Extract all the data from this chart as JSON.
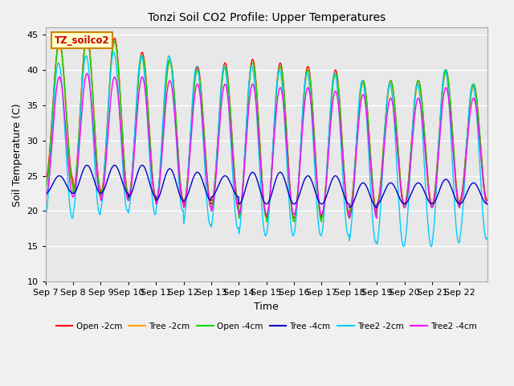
{
  "title": "Tonzi Soil CO2 Profile: Upper Temperatures",
  "xlabel": "Time",
  "ylabel": "Soil Temperature (C)",
  "ylim": [
    10,
    46
  ],
  "yticks": [
    10,
    15,
    20,
    25,
    30,
    35,
    40,
    45
  ],
  "xtick_labels": [
    "Sep 7",
    "Sep 8",
    "Sep 9",
    "Sep 10",
    "Sep 11",
    "Sep 12",
    "Sep 13",
    "Sep 14",
    "Sep 15",
    "Sep 16",
    "Sep 17",
    "Sep 18",
    "Sep 19",
    "Sep 20",
    "Sep 21",
    "Sep 22"
  ],
  "series": [
    {
      "label": "Open -2cm",
      "color": "#ff0000"
    },
    {
      "label": "Tree -2cm",
      "color": "#ffa500"
    },
    {
      "label": "Open -4cm",
      "color": "#00dd00"
    },
    {
      "label": "Tree -4cm",
      "color": "#0000cc"
    },
    {
      "label": "Tree2 -2cm",
      "color": "#00ccff"
    },
    {
      "label": "Tree2 -4cm",
      "color": "#ff00ff"
    }
  ],
  "annotation_text": "TZ_soilco2",
  "annotation_color": "#cc0000",
  "annotation_bg": "#ffffcc",
  "annotation_border": "#cc8800",
  "fig_bg": "#f0f0f0",
  "plot_bg": "#e8e8e8",
  "grid_color": "#ffffff",
  "n_days": 16,
  "points_per_day": 96,
  "pk_open2": [
    44.0,
    45.0,
    44.5,
    42.5,
    41.5,
    40.5,
    41.0,
    41.5,
    41.0,
    40.5,
    40.0,
    38.5,
    38.5,
    38.5,
    40.0,
    38.0
  ],
  "mn_open2": [
    24.5,
    23.0,
    22.5,
    22.0,
    21.5,
    21.0,
    21.0,
    19.5,
    19.0,
    19.0,
    19.5,
    20.0,
    21.0,
    21.0,
    21.0,
    21.5
  ],
  "pk_tree2": [
    43.5,
    44.5,
    44.0,
    42.0,
    41.0,
    40.0,
    40.5,
    41.0,
    40.5,
    40.0,
    39.5,
    38.0,
    38.0,
    38.0,
    39.5,
    37.5
  ],
  "mn_tree2": [
    23.5,
    22.5,
    22.0,
    21.5,
    21.0,
    20.5,
    20.5,
    19.0,
    18.5,
    18.5,
    19.0,
    19.5,
    20.5,
    20.5,
    20.5,
    21.0
  ],
  "pk_open4": [
    44.0,
    44.5,
    44.0,
    42.0,
    41.5,
    40.0,
    40.5,
    41.0,
    40.5,
    40.0,
    39.5,
    38.5,
    38.5,
    38.5,
    40.0,
    38.0
  ],
  "mn_open4": [
    23.5,
    22.5,
    22.0,
    21.5,
    21.0,
    20.5,
    20.5,
    19.0,
    18.5,
    18.5,
    19.0,
    19.5,
    20.5,
    20.5,
    20.5,
    21.0
  ],
  "pk_tree4": [
    25.0,
    26.5,
    26.5,
    26.5,
    26.0,
    25.5,
    25.0,
    25.5,
    25.5,
    25.0,
    25.0,
    24.0,
    24.0,
    24.0,
    24.5,
    24.0
  ],
  "mn_tree4": [
    22.5,
    22.5,
    22.5,
    22.0,
    21.5,
    21.5,
    22.0,
    21.0,
    21.0,
    21.0,
    21.0,
    20.5,
    21.0,
    21.0,
    21.0,
    21.0
  ],
  "pk_tree22": [
    41.0,
    42.0,
    42.5,
    42.0,
    42.0,
    40.5,
    40.5,
    40.5,
    40.0,
    39.5,
    39.5,
    38.5,
    38.0,
    38.0,
    40.0,
    38.0
  ],
  "mn_tree22": [
    19.0,
    19.5,
    20.0,
    19.5,
    20.0,
    18.0,
    17.5,
    16.5,
    16.5,
    16.5,
    16.5,
    15.5,
    15.0,
    15.0,
    15.5,
    16.0
  ],
  "pk_tree24": [
    39.0,
    39.5,
    39.0,
    39.0,
    38.5,
    38.0,
    38.0,
    38.0,
    37.5,
    37.5,
    37.0,
    36.5,
    36.0,
    36.0,
    37.5,
    36.0
  ],
  "mn_tree24": [
    22.0,
    22.0,
    21.5,
    21.5,
    21.0,
    20.5,
    20.0,
    19.5,
    19.5,
    19.5,
    19.5,
    19.0,
    20.5,
    20.5,
    20.5,
    21.0
  ]
}
